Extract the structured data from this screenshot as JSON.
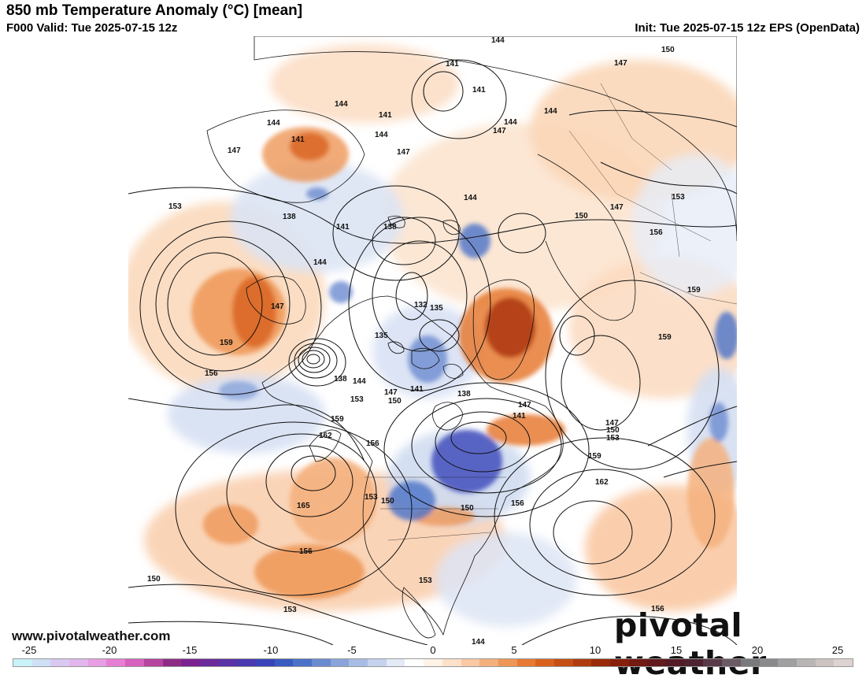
{
  "header": {
    "title": "850 mb Temperature Anomaly (°C) [mean]",
    "valid": "F000 Valid: Tue 2025-07-15 12z",
    "init": "Init: Tue 2025-07-15 12z EPS (OpenData)"
  },
  "footer": {
    "site": "www.pivotalweather.com",
    "brand": "pivotal weather"
  },
  "map": {
    "contour_labels": [
      "144",
      "141",
      "147",
      "150",
      "144",
      "141",
      "144",
      "147",
      "141",
      "144",
      "147",
      "144",
      "141",
      "144",
      "147",
      "153",
      "138",
      "141",
      "138",
      "144",
      "150",
      "147",
      "153",
      "147",
      "144",
      "156",
      "132",
      "135",
      "135",
      "159",
      "159",
      "159",
      "156",
      "138",
      "144",
      "147",
      "141",
      "138",
      "150",
      "153",
      "147",
      "141",
      "147",
      "150",
      "153",
      "156",
      "159",
      "162",
      "159",
      "162",
      "165",
      "153",
      "150",
      "150",
      "156",
      "156",
      "150",
      "153",
      "153",
      "156",
      "144"
    ]
  },
  "colorbar": {
    "tick_labels": [
      "-25",
      "-20",
      "-15",
      "-10",
      "-5",
      "0",
      "5",
      "10",
      "15",
      "20",
      "25"
    ],
    "colors": [
      "#c8f2f8",
      "#cfe0f5",
      "#d9c8f0",
      "#e2b6ec",
      "#e79ee3",
      "#e67fd3",
      "#d75fbd",
      "#b6439f",
      "#8e2c85",
      "#7a2290",
      "#6b2a9a",
      "#5a33a6",
      "#4a3bb0",
      "#3a44b8",
      "#3a5bc0",
      "#4b72c8",
      "#6a8bd0",
      "#89a4da",
      "#a8bce4",
      "#c6d3ee",
      "#e3eaf6",
      "#ffffff",
      "#fff2e6",
      "#fde0c8",
      "#f9c9a4",
      "#f4b07d",
      "#ee9656",
      "#e67a32",
      "#d8621e",
      "#c54f15",
      "#b03c10",
      "#9a2a0c",
      "#86200c",
      "#731a12",
      "#621a1c",
      "#541b26",
      "#4e2230",
      "#5a3a48",
      "#6a5a64",
      "#7a7a7c",
      "#8a8a8c",
      "#a0a0a2",
      "#b8b5b4",
      "#cdc4c2",
      "#ddd3d0"
    ]
  }
}
